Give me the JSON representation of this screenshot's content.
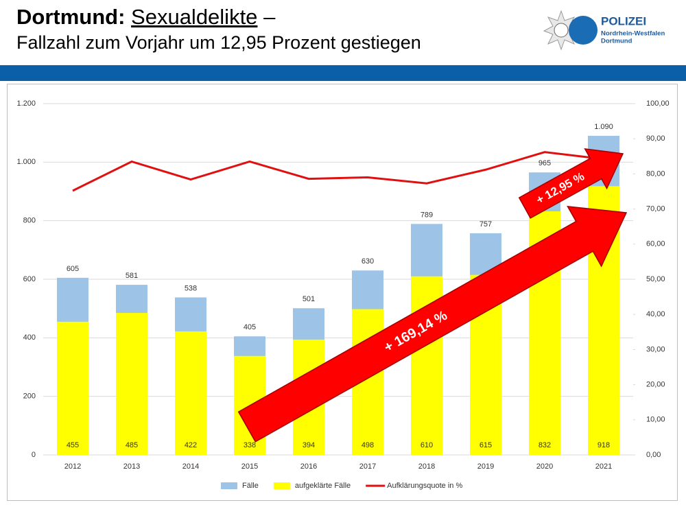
{
  "header": {
    "title_place": "Dortmund:",
    "title_topic": "Sexualdelikte",
    "title_dash": "–",
    "subtitle": "Fallzahl zum Vorjahr um 12,95 Prozent gestiegen"
  },
  "logo": {
    "name": "POLIZEI",
    "region": "Nordrhein-Westfalen",
    "city": "Dortmund"
  },
  "chart_data": {
    "type": "bar",
    "categories": [
      "2012",
      "2013",
      "2014",
      "2015",
      "2016",
      "2017",
      "2018",
      "2019",
      "2020",
      "2021"
    ],
    "series": [
      {
        "name": "Fälle",
        "color": "#9dc3e6",
        "values": [
          605,
          581,
          538,
          405,
          501,
          630,
          789,
          757,
          965,
          1090
        ],
        "value_labels": [
          "605",
          "581",
          "538",
          "405",
          "501",
          "630",
          "789",
          "757",
          "965",
          "1.090"
        ]
      },
      {
        "name": "aufgeklärte Fälle",
        "color": "#ffff00",
        "values": [
          455,
          485,
          422,
          338,
          394,
          498,
          610,
          615,
          832,
          918
        ]
      },
      {
        "name": "Aufklärungsquote in %",
        "color": "#e01010",
        "type": "line",
        "axis": "y2",
        "values": [
          75.2,
          83.5,
          78.4,
          83.5,
          78.6,
          79.0,
          77.3,
          81.2,
          86.2,
          84.2
        ]
      }
    ],
    "ylim": [
      0,
      1200
    ],
    "yticks": [
      0,
      200,
      400,
      600,
      800,
      {
        "value": 1000,
        "label": "1.000"
      },
      {
        "value": 1200,
        "label": "1.200"
      }
    ],
    "y2lim": [
      0,
      100
    ],
    "y2ticks": [
      {
        "value": 0,
        "label": "0,00"
      },
      {
        "value": 10,
        "label": "10,00"
      },
      {
        "value": 20,
        "label": "20,00"
      },
      {
        "value": 30,
        "label": "30,00"
      },
      {
        "value": 40,
        "label": "40,00"
      },
      {
        "value": 50,
        "label": "50,00"
      },
      {
        "value": 60,
        "label": "60,00"
      },
      {
        "value": 70,
        "label": "70,00"
      },
      {
        "value": 80,
        "label": "80,00"
      },
      {
        "value": 90,
        "label": "90,00"
      },
      {
        "value": 100,
        "label": "100,00"
      }
    ],
    "grid": true,
    "legend": "bottom",
    "annotations": [
      "+ 169,14 %",
      "+ 12,95 %"
    ]
  }
}
